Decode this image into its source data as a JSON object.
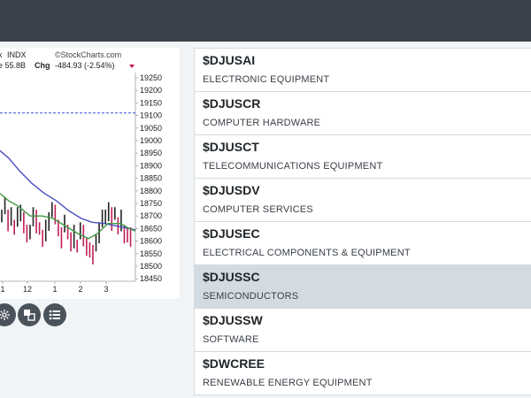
{
  "chart": {
    "header": {
      "ticker_partial": "x",
      "exchange": "INDX",
      "source": "©StockCharts.com",
      "volume_partial": "e 55.8B",
      "chg_label": "Chg",
      "chg_value": "-484.93 (-2.54%)",
      "chg_color": "#c0174b"
    },
    "y_ticks": [
      "19250",
      "19200",
      "19150",
      "19100",
      "19050",
      "19000",
      "18950",
      "18900",
      "18850",
      "18800",
      "18750",
      "18700",
      "18650",
      "18600",
      "18550",
      "18500",
      "18450"
    ],
    "x_ticks": [
      "1",
      "12",
      "1",
      "2",
      "3"
    ],
    "dashed_level": 19110,
    "colors": {
      "ma_long": "#4a4fbf",
      "ma_short": "#3f9a3f",
      "down_bar": "#c21d5a",
      "up_bar": "#222222",
      "dashed": "#3b4bd8"
    }
  },
  "tools": [
    "settings-icon",
    "compare-icon",
    "list-icon"
  ],
  "sectors": [
    {
      "symbol": "$DJUSAI",
      "name": "ELECTRONIC EQUIPMENT"
    },
    {
      "symbol": "$DJUSCR",
      "name": "COMPUTER HARDWARE"
    },
    {
      "symbol": "$DJUSCT",
      "name": "TELECOMMUNICATIONS EQUIPMENT"
    },
    {
      "symbol": "$DJUSDV",
      "name": "COMPUTER SERVICES"
    },
    {
      "symbol": "$DJUSEC",
      "name": "ELECTRICAL COMPONENTS & EQUIPMENT"
    },
    {
      "symbol": "$DJUSSC",
      "name": "SEMICONDUCTORS",
      "selected": true
    },
    {
      "symbol": "$DJUSSW",
      "name": "SOFTWARE"
    },
    {
      "symbol": "$DWCREE",
      "name": "RENEWABLE ENERGY EQUIPMENT"
    }
  ]
}
